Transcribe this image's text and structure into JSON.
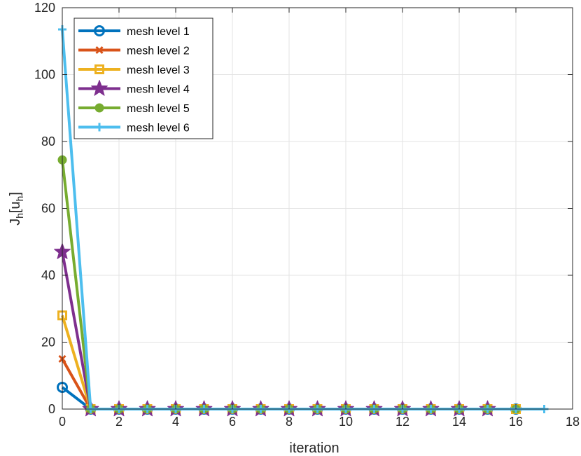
{
  "chart_data": {
    "type": "line",
    "xlabel": "iteration",
    "ylabel_main": "J",
    "ylabel_sub1": "h",
    "ylabel_bracket_open": "[u",
    "ylabel_sub2": "h",
    "ylabel_bracket_close": "]",
    "xlim": [
      0,
      18
    ],
    "ylim": [
      0,
      120
    ],
    "xticks": [
      0,
      2,
      4,
      6,
      8,
      10,
      12,
      14,
      16,
      18
    ],
    "yticks": [
      0,
      20,
      40,
      60,
      80,
      100,
      120
    ],
    "grid": true,
    "legend_position": "top-left",
    "series": [
      {
        "name": "mesh level 1",
        "color": "#0072BD",
        "marker": "circle",
        "x": [
          0,
          1,
          2,
          3,
          4,
          5,
          6,
          7,
          8,
          9,
          10,
          11,
          12,
          13,
          14,
          15,
          16
        ],
        "y": [
          6.5,
          0,
          0,
          0,
          0,
          0,
          0,
          0,
          0,
          0,
          0,
          0,
          0,
          0,
          0,
          0,
          0
        ]
      },
      {
        "name": "mesh level 2",
        "color": "#D95319",
        "marker": "x",
        "x": [
          0,
          1,
          2,
          3,
          4,
          5,
          6,
          7,
          8,
          9,
          10,
          11,
          12,
          13,
          14,
          15,
          16
        ],
        "y": [
          15,
          0,
          0,
          0,
          0,
          0,
          0,
          0,
          0,
          0,
          0,
          0,
          0,
          0,
          0,
          0,
          0
        ]
      },
      {
        "name": "mesh level 3",
        "color": "#EDB120",
        "marker": "square",
        "x": [
          0,
          1,
          2,
          3,
          4,
          5,
          6,
          7,
          8,
          9,
          10,
          11,
          12,
          13,
          14,
          15,
          16
        ],
        "y": [
          28,
          0,
          0,
          0,
          0,
          0,
          0,
          0,
          0,
          0,
          0,
          0,
          0,
          0,
          0,
          0,
          0
        ]
      },
      {
        "name": "mesh level 4",
        "color": "#7E2F8E",
        "marker": "star",
        "x": [
          0,
          1,
          2,
          3,
          4,
          5,
          6,
          7,
          8,
          9,
          10,
          11,
          12,
          13,
          14,
          15
        ],
        "y": [
          47,
          0,
          0,
          0,
          0,
          0,
          0,
          0,
          0,
          0,
          0,
          0,
          0,
          0,
          0,
          0
        ]
      },
      {
        "name": "mesh level 5",
        "color": "#77AC30",
        "marker": "dot",
        "x": [
          0,
          1,
          2,
          3,
          4,
          5,
          6,
          7,
          8,
          9,
          10,
          11,
          12,
          13,
          14,
          15,
          16
        ],
        "y": [
          74.5,
          0,
          0,
          0,
          0,
          0,
          0,
          0,
          0,
          0,
          0,
          0,
          0,
          0,
          0,
          0,
          0
        ]
      },
      {
        "name": "mesh level 6",
        "color": "#4DBEEE",
        "marker": "plus",
        "x": [
          0,
          1,
          2,
          3,
          4,
          5,
          6,
          7,
          8,
          9,
          10,
          11,
          12,
          13,
          14,
          15,
          16,
          17
        ],
        "y": [
          113.5,
          0,
          0,
          0,
          0,
          0,
          0,
          0,
          0,
          0,
          0,
          0,
          0,
          0,
          0,
          0,
          0,
          0
        ]
      }
    ]
  }
}
